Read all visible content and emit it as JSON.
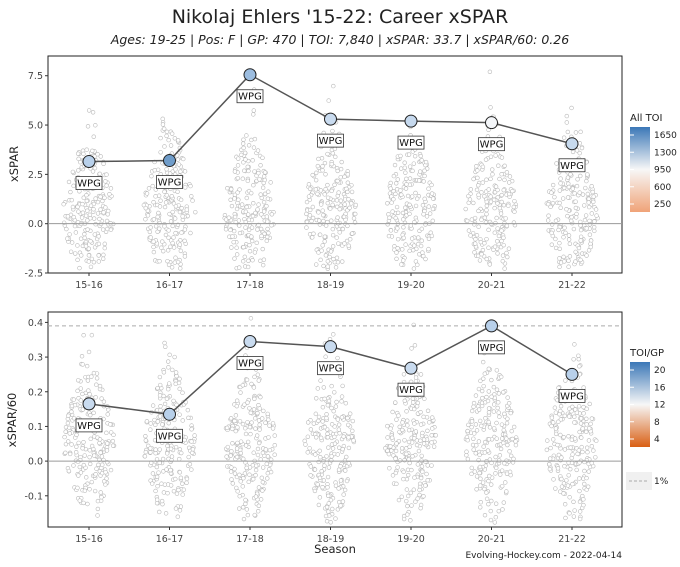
{
  "title": "Nikolaj Ehlers '15-22: Career xSPAR",
  "subtitle": "Ages: 19-25 | Pos: F | GP: 470 | TOI: 7,840 | xSPAR: 33.7 | xSPAR/60: 0.26",
  "source": "Evolving-Hockey.com - 2022-04-14",
  "chart_data": [
    {
      "type": "scatter",
      "ylabel": "xSPAR",
      "xlabel": "",
      "categories": [
        "15-16",
        "16-17",
        "17-18",
        "18-19",
        "19-20",
        "20-21",
        "21-22"
      ],
      "ylim": [
        -2.5,
        8.5
      ],
      "yticks": [
        "-2.5",
        "0.0",
        "2.5",
        "5.0",
        "7.5"
      ],
      "ytick_values": [
        -2.5,
        0,
        2.5,
        5,
        7.5
      ],
      "zero_line": 0,
      "series": [
        {
          "values": [
            3.15,
            3.2,
            7.55,
            5.3,
            5.2,
            5.12,
            4.05
          ],
          "team_labels": [
            "WPG",
            "WPG",
            "WPG",
            "WPG",
            "WPG",
            "WPG",
            "WPG"
          ],
          "point_colors": [
            "#b8d0ea",
            "#6f9cc9",
            "#9cbde0",
            "#c9dbef",
            "#c6d9ee",
            "#f4f6f9",
            "#c7daee"
          ]
        }
      ],
      "legend": {
        "title": "All TOI",
        "labels": [
          "1650",
          "1300",
          "950",
          "600",
          "250"
        ],
        "colors": [
          "#3b78b7",
          "#f7f7f7",
          "#f0a378"
        ],
        "placement": "right"
      },
      "background_distribution": {
        "lower": -2.3,
        "upper": 8.2,
        "center": 0.6
      }
    },
    {
      "type": "scatter",
      "ylabel": "xSPAR/60",
      "xlabel": "Season",
      "categories": [
        "15-16",
        "16-17",
        "17-18",
        "18-19",
        "19-20",
        "20-21",
        "21-22"
      ],
      "ylim": [
        -0.19,
        0.43
      ],
      "yticks": [
        "-0.1",
        "0.0",
        "0.1",
        "0.2",
        "0.3",
        "0.4"
      ],
      "ytick_values": [
        -0.1,
        0,
        0.1,
        0.2,
        0.3,
        0.4
      ],
      "zero_line": 0,
      "reference_line": 0.39,
      "series": [
        {
          "values": [
            0.165,
            0.135,
            0.345,
            0.33,
            0.268,
            0.39,
            0.25
          ],
          "team_labels": [
            "WPG",
            "WPG",
            "WPG",
            "WPG",
            "WPG",
            "WPG",
            "WPG"
          ],
          "point_colors": [
            "#c9dbef",
            "#b8d0ea",
            "#c9dbef",
            "#c9dbef",
            "#c9dbef",
            "#b8d0ea",
            "#b8d0ea"
          ]
        }
      ],
      "legend": {
        "title": "TOI/GP",
        "labels": [
          "20",
          "16",
          "12",
          "8",
          "4"
        ],
        "colors": [
          "#3b78b7",
          "#f7f7f7",
          "#d95f14"
        ],
        "placement": "right",
        "line_label": "1%"
      },
      "background_distribution": {
        "lower": -0.18,
        "upper": 0.42,
        "center": 0.05
      }
    }
  ]
}
